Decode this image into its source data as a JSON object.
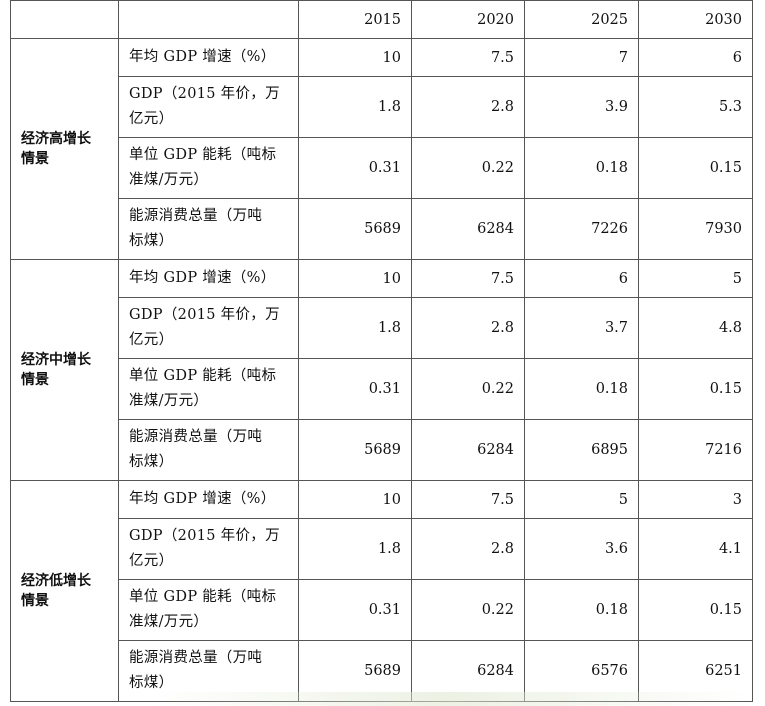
{
  "years": [
    "2015",
    "2020",
    "2025",
    "2030"
  ],
  "scenarios": [
    {
      "name_lines": [
        "经济高增长",
        "情景"
      ],
      "rows": [
        {
          "label_lines": [
            "年均 GDP 增速（%）"
          ],
          "values": [
            "10",
            "7.5",
            "7",
            "6"
          ]
        },
        {
          "label_lines": [
            "GDP（2015 年价，万",
            "亿元）"
          ],
          "values": [
            "1.8",
            "2.8",
            "3.9",
            "5.3"
          ]
        },
        {
          "label_lines": [
            "单位 GDP 能耗（吨标",
            "准煤/万元）"
          ],
          "values": [
            "0.31",
            "0.22",
            "0.18",
            "0.15"
          ]
        },
        {
          "label_lines": [
            "能源消费总量（万吨",
            "标煤）"
          ],
          "values": [
            "5689",
            "6284",
            "7226",
            "7930"
          ]
        }
      ]
    },
    {
      "name_lines": [
        "经济中增长",
        "情景"
      ],
      "rows": [
        {
          "label_lines": [
            "年均 GDP 增速（%）"
          ],
          "values": [
            "10",
            "7.5",
            "6",
            "5"
          ]
        },
        {
          "label_lines": [
            "GDP（2015 年价，万",
            "亿元）"
          ],
          "values": [
            "1.8",
            "2.8",
            "3.7",
            "4.8"
          ]
        },
        {
          "label_lines": [
            "单位 GDP 能耗（吨标",
            "准煤/万元）"
          ],
          "values": [
            "0.31",
            "0.22",
            "0.18",
            "0.15"
          ]
        },
        {
          "label_lines": [
            "能源消费总量（万吨",
            "标煤）"
          ],
          "values": [
            "5689",
            "6284",
            "6895",
            "7216"
          ]
        }
      ]
    },
    {
      "name_lines": [
        "经济低增长",
        "情景"
      ],
      "rows": [
        {
          "label_lines": [
            "年均 GDP 增速（%）"
          ],
          "values": [
            "10",
            "7.5",
            "5",
            "3"
          ]
        },
        {
          "label_lines": [
            "GDP（2015 年价，万",
            "亿元）"
          ],
          "values": [
            "1.8",
            "2.8",
            "3.6",
            "4.1"
          ]
        },
        {
          "label_lines": [
            "单位 GDP 能耗（吨标",
            "准煤/万元）"
          ],
          "values": [
            "0.31",
            "0.22",
            "0.18",
            "0.15"
          ]
        },
        {
          "label_lines": [
            "能源消费总量（万吨",
            "标煤）"
          ],
          "values": [
            "5689",
            "6284",
            "6576",
            "6251"
          ]
        }
      ]
    }
  ]
}
